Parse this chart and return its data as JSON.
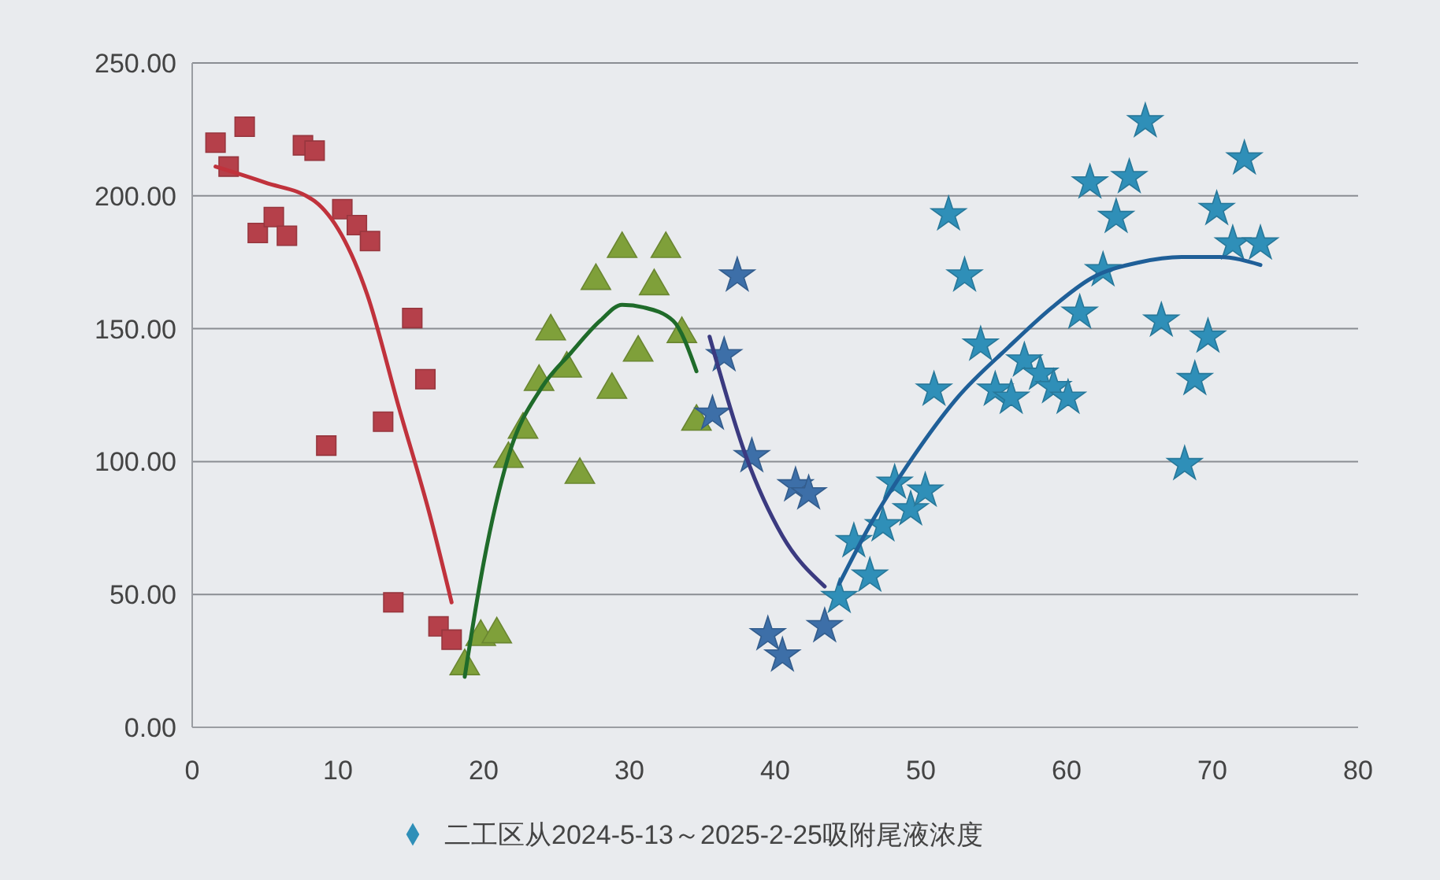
{
  "chart_data": {
    "type": "scatter",
    "xlim": [
      0,
      80
    ],
    "xticks": [
      0,
      10,
      20,
      30,
      40,
      50,
      60,
      70,
      80
    ],
    "ylim": [
      0,
      250
    ],
    "yticks": [
      {
        "value": 0,
        "label": "0.00"
      },
      {
        "value": 50,
        "label": "50.00"
      },
      {
        "value": 100,
        "label": "100.00"
      },
      {
        "value": 150,
        "label": "150.00"
      },
      {
        "value": 200,
        "label": "200.00"
      },
      {
        "value": 250,
        "label": "250.00"
      }
    ],
    "grid": "y",
    "legend": "bottom",
    "series": [
      {
        "marker": "square",
        "color": "#b5404a",
        "x": [
          1.6,
          2.5,
          3.6,
          4.5,
          5.6,
          6.5,
          7.6,
          8.4,
          9.2,
          10.3,
          11.3,
          12.2,
          13.1,
          13.8,
          15.1,
          16.0,
          16.9,
          17.8
        ],
        "values": [
          220,
          211,
          226,
          186,
          192,
          185,
          219,
          217,
          106,
          195,
          189,
          183,
          115,
          47,
          154,
          131,
          38,
          33
        ]
      },
      {
        "type": "line",
        "color": "#c0323c",
        "x": [
          1.6,
          5,
          8.4,
          12,
          14.2,
          16.3,
          17.8
        ],
        "values": [
          211,
          205,
          198,
          163,
          120,
          80,
          47
        ]
      },
      {
        "marker": "triangle",
        "color": "#7fa03a",
        "x": [
          18.7,
          19.8,
          20.9,
          21.7,
          22.7,
          23.8,
          24.6,
          25.7,
          26.6,
          27.7,
          28.8,
          29.5,
          30.6,
          31.7,
          32.5,
          33.6,
          34.6
        ],
        "values": [
          23,
          34,
          35,
          101,
          112,
          130,
          149,
          135,
          95,
          168,
          127,
          180,
          141,
          166,
          180,
          148,
          115
        ]
      },
      {
        "type": "line",
        "color": "#1f6b2a",
        "x": [
          18.7,
          20,
          21.7,
          24,
          26,
          28,
          29.5,
          31,
          33,
          34.6
        ],
        "values": [
          19,
          62,
          102,
          128,
          141,
          153,
          159,
          158,
          153,
          134
        ]
      },
      {
        "marker": "star",
        "color": "#3d6fa8",
        "x": [
          35.7,
          36.5,
          37.4,
          38.4,
          39.5,
          40.5,
          41.4,
          42.3,
          43.4
        ],
        "values": [
          118,
          140,
          170,
          102,
          35,
          27,
          91,
          88,
          38
        ]
      },
      {
        "type": "line",
        "color": "#3b3a80",
        "x": [
          35.5,
          38,
          40.5,
          43.4
        ],
        "values": [
          147,
          102,
          72,
          53
        ]
      },
      {
        "marker": "star",
        "color": "#2f8fb8",
        "name": "二工区从2024-5-13～2025-2-25吸附尾液浓度",
        "x": [
          44.4,
          45.4,
          46.5,
          47.4,
          48.2,
          49.3,
          50.3,
          50.9,
          51.9,
          53,
          54.1,
          55.1,
          56.2,
          57.1,
          58.2,
          59.1,
          60.1,
          60.9,
          61.6,
          62.5,
          63.4,
          64.3,
          65.4,
          66.5,
          68.1,
          68.8,
          69.7,
          70.3,
          71.4,
          72.2,
          73.3
        ],
        "values": [
          49,
          70,
          57,
          76,
          92,
          82,
          89,
          127,
          193,
          170,
          144,
          127,
          124,
          138,
          133,
          128,
          124,
          156,
          205,
          172,
          192,
          207,
          228,
          153,
          99,
          131,
          147,
          195,
          182,
          214,
          182
        ]
      },
      {
        "type": "line",
        "color": "#1f5f98",
        "x": [
          44.4,
          46.5,
          49.5,
          52.5,
          56,
          59,
          61.7,
          65,
          67.9,
          70.5,
          73.3
        ],
        "values": [
          54,
          76,
          102,
          124,
          143,
          158,
          169,
          175,
          177,
          177,
          174
        ]
      }
    ]
  }
}
